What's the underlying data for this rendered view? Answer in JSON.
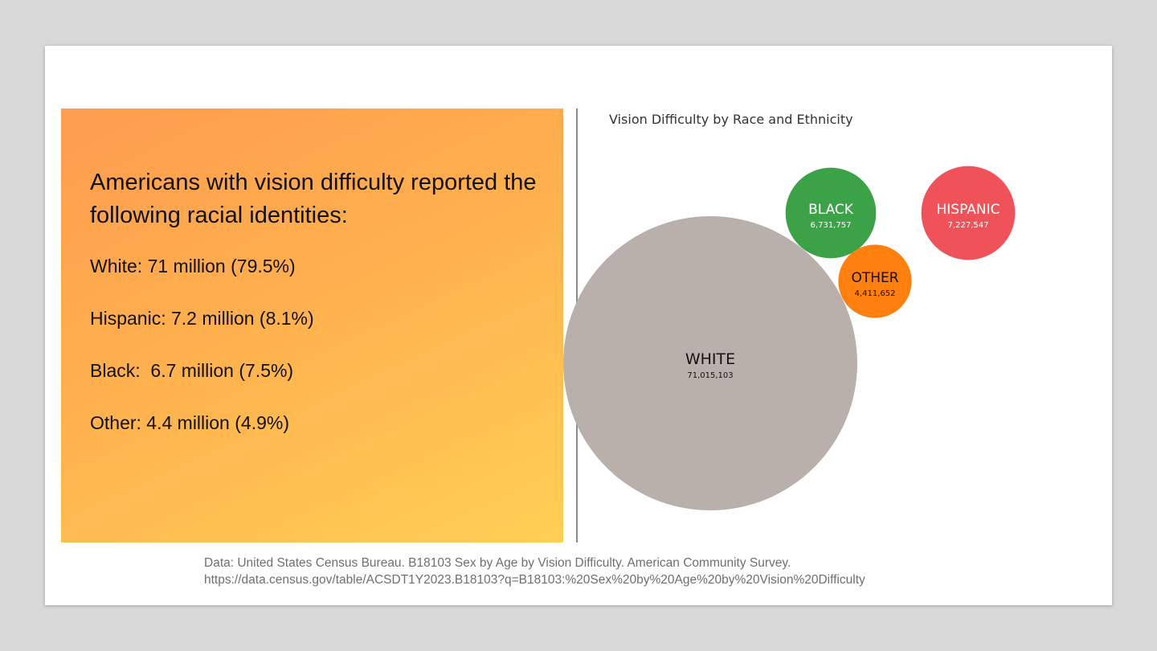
{
  "headline": "Americans with vision difficulty reported the following racial identities:",
  "stats": [
    "White: 71 million (79.5%)",
    "Hispanic: 7.2 million (8.1%)",
    "Black:  6.7 million (7.5%)",
    "Other: 4.4 million (4.9%)"
  ],
  "source": {
    "line1": "Data: United States Census Bureau. B18103 Sex by Age by Vision Difficulty. American Community Survey.",
    "line2": "https://data.census.gov/table/ACSDT1Y2023.B18103?q=B18103:%20Sex%20by%20Age%20by%20Vision%20Difficulty"
  },
  "chart_data": {
    "type": "bubble",
    "title": "Vision Difficulty by Race and Ethnicity",
    "categories": [
      "WHITE",
      "BLACK",
      "HISPANIC",
      "OTHER"
    ],
    "values": [
      71015103,
      6731757,
      7227547,
      4411652
    ],
    "value_labels": [
      "71,015,103",
      "6,731,757",
      "7,227,547",
      "4,411,652"
    ],
    "colors": [
      "#bab0ab",
      "#3ca247",
      "#f0525a",
      "#ff7f0f"
    ],
    "label_colors": [
      "#111111",
      "#ffffff",
      "#ffffff",
      "#111111"
    ],
    "legend": "none"
  }
}
